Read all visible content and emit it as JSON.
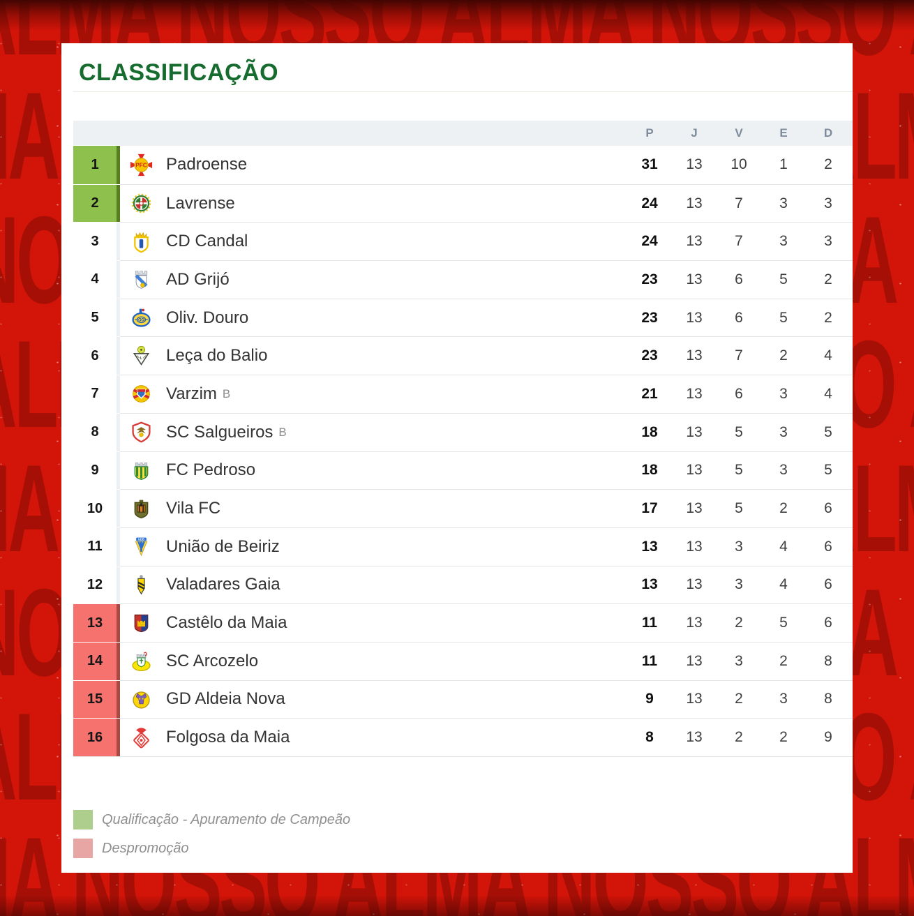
{
  "page": {
    "title": "CLASSIFICAÇÃO"
  },
  "background": {
    "fragments": [
      "ALMA",
      "NOSSO"
    ],
    "base_color": "#d31408",
    "letter_color": "#8e0f05"
  },
  "colors": {
    "title": "#166b2e",
    "qualification_cell": "#8dc04d",
    "qualification_border": "#587f1f",
    "relegation_cell": "#f5726f",
    "relegation_border": "#a84a44",
    "neutral_border": "#edf0f2",
    "legend_qualification": "#adce8d",
    "legend_relegation": "#e7a6a4"
  },
  "table": {
    "headers": [
      "P",
      "J",
      "V",
      "E",
      "D"
    ],
    "rows": [
      {
        "pos": "1",
        "team": "Padroense",
        "suffix": "",
        "logo": "padroense-crest",
        "zone": "qualification",
        "p": "31",
        "j": "13",
        "v": "10",
        "e": "1",
        "d": "2"
      },
      {
        "pos": "2",
        "team": "Lavrense",
        "suffix": "",
        "logo": "lavrense-crest",
        "zone": "qualification",
        "p": "24",
        "j": "13",
        "v": "7",
        "e": "3",
        "d": "3"
      },
      {
        "pos": "3",
        "team": "CD Candal",
        "suffix": "",
        "logo": "candal-crest",
        "zone": "none",
        "p": "24",
        "j": "13",
        "v": "7",
        "e": "3",
        "d": "3"
      },
      {
        "pos": "4",
        "team": "AD Grijó",
        "suffix": "",
        "logo": "grijo-crest",
        "zone": "none",
        "p": "23",
        "j": "13",
        "v": "6",
        "e": "5",
        "d": "2"
      },
      {
        "pos": "5",
        "team": "Oliv. Douro",
        "suffix": "",
        "logo": "olivdouro-crest",
        "zone": "none",
        "p": "23",
        "j": "13",
        "v": "6",
        "e": "5",
        "d": "2"
      },
      {
        "pos": "6",
        "team": "Leça do Balio",
        "suffix": "",
        "logo": "leca-crest",
        "zone": "none",
        "p": "23",
        "j": "13",
        "v": "7",
        "e": "2",
        "d": "4"
      },
      {
        "pos": "7",
        "team": "Varzim",
        "suffix": "B",
        "logo": "varzim-crest",
        "zone": "none",
        "p": "21",
        "j": "13",
        "v": "6",
        "e": "3",
        "d": "4"
      },
      {
        "pos": "8",
        "team": "SC Salgueiros",
        "suffix": "B",
        "logo": "salgueiros-crest",
        "zone": "none",
        "p": "18",
        "j": "13",
        "v": "5",
        "e": "3",
        "d": "5"
      },
      {
        "pos": "9",
        "team": "FC Pedroso",
        "suffix": "",
        "logo": "pedroso-crest",
        "zone": "none",
        "p": "18",
        "j": "13",
        "v": "5",
        "e": "3",
        "d": "5"
      },
      {
        "pos": "10",
        "team": "Vila FC",
        "suffix": "",
        "logo": "vilafc-crest",
        "zone": "none",
        "p": "17",
        "j": "13",
        "v": "5",
        "e": "2",
        "d": "6"
      },
      {
        "pos": "11",
        "team": "União de Beiriz",
        "suffix": "",
        "logo": "beiriz-crest",
        "zone": "none",
        "p": "13",
        "j": "13",
        "v": "3",
        "e": "4",
        "d": "6"
      },
      {
        "pos": "12",
        "team": "Valadares Gaia",
        "suffix": "",
        "logo": "valadares-crest",
        "zone": "none",
        "p": "13",
        "j": "13",
        "v": "3",
        "e": "4",
        "d": "6"
      },
      {
        "pos": "13",
        "team": "Castêlo da Maia",
        "suffix": "",
        "logo": "castelo-crest",
        "zone": "relegation",
        "p": "11",
        "j": "13",
        "v": "2",
        "e": "5",
        "d": "6"
      },
      {
        "pos": "14",
        "team": "SC Arcozelo",
        "suffix": "",
        "logo": "arcozelo-crest",
        "zone": "relegation",
        "p": "11",
        "j": "13",
        "v": "3",
        "e": "2",
        "d": "8"
      },
      {
        "pos": "15",
        "team": "GD Aldeia Nova",
        "suffix": "",
        "logo": "aldeianova-crest",
        "zone": "relegation",
        "p": "9",
        "j": "13",
        "v": "2",
        "e": "3",
        "d": "8"
      },
      {
        "pos": "16",
        "team": "Folgosa da Maia",
        "suffix": "",
        "logo": "folgosa-crest",
        "zone": "relegation",
        "p": "8",
        "j": "13",
        "v": "2",
        "e": "2",
        "d": "9"
      }
    ]
  },
  "legend": [
    {
      "label": "Qualificação - Apuramento de Campeão"
    },
    {
      "label": "Despromoção"
    }
  ]
}
